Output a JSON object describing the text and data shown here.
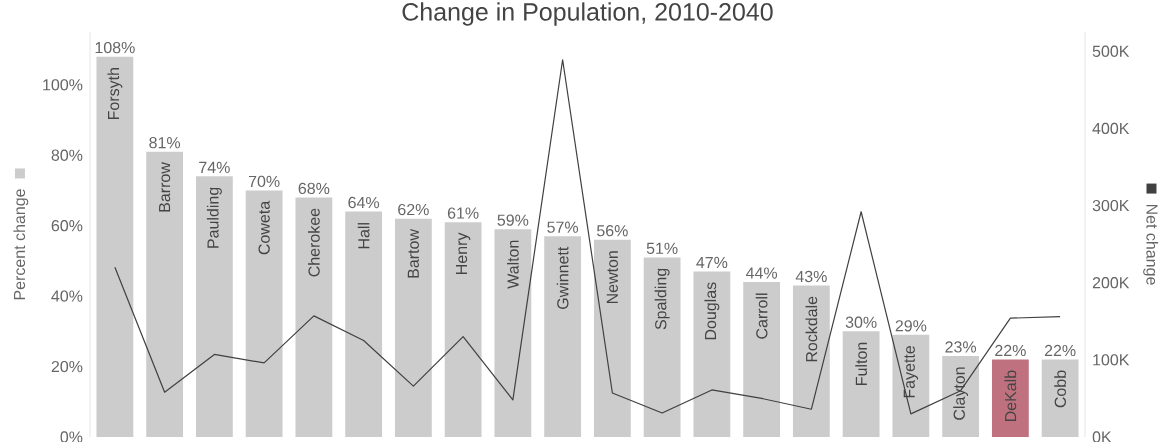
{
  "chart_data": {
    "type": "bar",
    "title": "Change in Population, 2010-2040",
    "ylabel": "Percent change",
    "y2label": "Net change",
    "categories": [
      "Forsyth",
      "Barrow",
      "Paulding",
      "Coweta",
      "Cherokee",
      "Hall",
      "Bartow",
      "Henry",
      "Walton",
      "Gwinnett",
      "Newton",
      "Spalding",
      "Douglas",
      "Carroll",
      "Rockdale",
      "Fulton",
      "Fayette",
      "Clayton",
      "DeKalb",
      "Cobb"
    ],
    "series": [
      {
        "values": [
          108,
          81,
          74,
          70,
          68,
          64,
          62,
          61,
          59,
          57,
          56,
          51,
          47,
          44,
          43,
          30,
          29,
          23,
          22,
          22
        ],
        "value_labels": [
          "108%",
          "81%",
          "74%",
          "70%",
          "68%",
          "64%",
          "62%",
          "61%",
          "59%",
          "57%",
          "56%",
          "51%",
          "47%",
          "44%",
          "43%",
          "30%",
          "29%",
          "23%",
          "22%",
          "22%"
        ],
        "color": "#cccccc",
        "colors": [
          "#cccccc",
          "#cccccc",
          "#cccccc",
          "#cccccc",
          "#cccccc",
          "#cccccc",
          "#cccccc",
          "#cccccc",
          "#cccccc",
          "#cccccc",
          "#cccccc",
          "#cccccc",
          "#cccccc",
          "#cccccc",
          "#cccccc",
          "#cccccc",
          "#cccccc",
          "#cccccc",
          "#c0717f",
          "#cccccc"
        ]
      },
      {
        "type": "line",
        "axis": "y2",
        "color": "#404040",
        "values": [
          220000,
          58000,
          107000,
          96000,
          157000,
          125000,
          66000,
          130000,
          48000,
          489000,
          57000,
          31000,
          61000,
          50000,
          36000,
          292000,
          30000,
          60000,
          154000,
          156000
        ]
      }
    ],
    "ylim": [
      0,
      115
    ],
    "yticks": [
      {
        "value": 0,
        "label": "0%"
      },
      {
        "value": 20,
        "label": "20%"
      },
      {
        "value": 40,
        "label": "40%"
      },
      {
        "value": 60,
        "label": "60%"
      },
      {
        "value": 80,
        "label": "80%"
      },
      {
        "value": 100,
        "label": "100%"
      }
    ],
    "y2lim": [
      0,
      525000
    ],
    "y2ticks": [
      {
        "value": 0,
        "label": "0K"
      },
      {
        "value": 100000,
        "label": "100K"
      },
      {
        "value": 200000,
        "label": "200K"
      },
      {
        "value": 300000,
        "label": "300K"
      },
      {
        "value": 400000,
        "label": "400K"
      },
      {
        "value": 500000,
        "label": "500K"
      }
    ]
  }
}
